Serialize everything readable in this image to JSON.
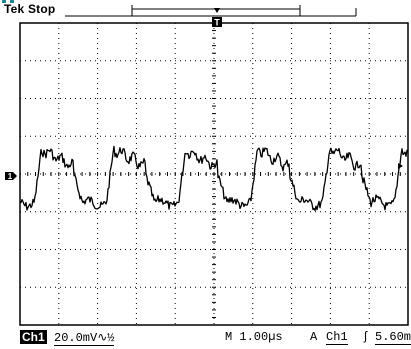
{
  "header": {
    "brand": "Tek",
    "state": "Stop"
  },
  "markers": {
    "trigger_position": "T",
    "channel_ground": "1"
  },
  "status": {
    "channel_label": "Ch1",
    "volts_per_div": "20.0mV",
    "bandwidth_symbol": "∿½",
    "timebase": "M 1.00µs",
    "trigger_mode": "A",
    "trigger_source": "Ch1",
    "trigger_slope": "ʃ",
    "trigger_level": "5.60mV"
  },
  "colors": {
    "trace": "#000000",
    "grid": "#000000",
    "background": "#ffffff",
    "header_accent": "#1a8a8a"
  }
}
